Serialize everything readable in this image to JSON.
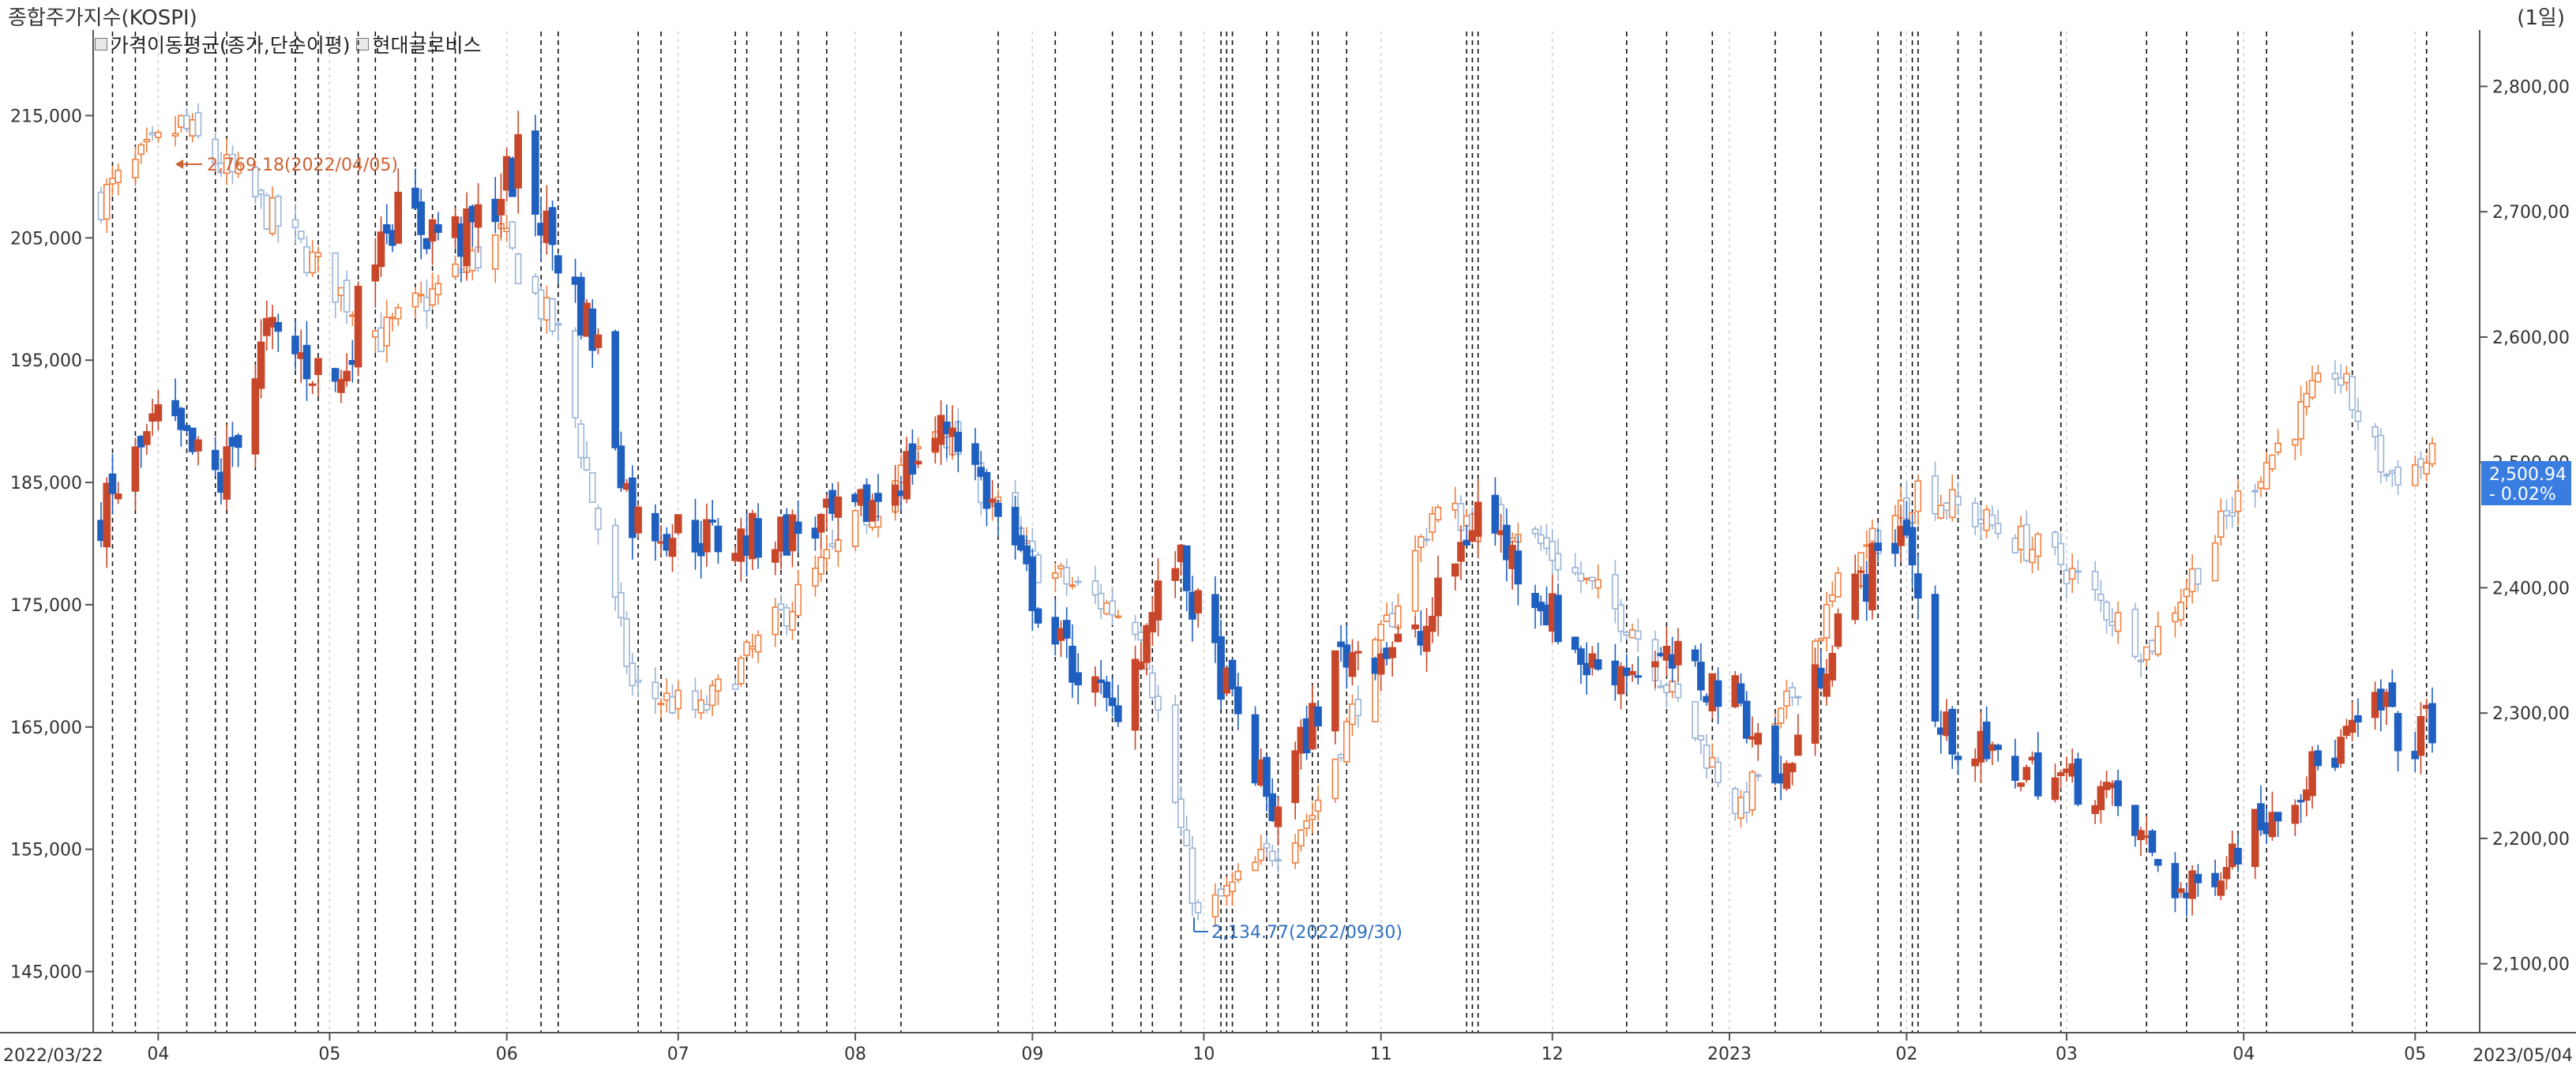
{
  "header": {
    "title": "종합주가지수(KOSPI)",
    "period": "(1일)"
  },
  "legend": [
    {
      "label": "가격이동평균(종가,단순이평)"
    },
    {
      "label": "현대글로비스"
    }
  ],
  "annotations": {
    "high": "2,769.18(2022/04/05)",
    "low": "2,134.77(2022/09/30)"
  },
  "current": {
    "value": "2,500.94",
    "change": "- 0.02%"
  },
  "colors": {
    "kospi_up": "#f08040",
    "kospi_down": "#9bb4d6",
    "stock_up": "#c8472a",
    "stock_down": "#1f5fbf",
    "badge": "#3a7de0"
  },
  "chart_data": {
    "type": "candlestick",
    "x_range": [
      "2022/03/22",
      "2023/05/04"
    ],
    "x_start_label": "2022/03/22",
    "x_end_label": "2023/05/04",
    "x_ticks": [
      {
        "label": "04",
        "date": "2022-04-01"
      },
      {
        "label": "05",
        "date": "2022-05-01"
      },
      {
        "label": "06",
        "date": "2022-06-01"
      },
      {
        "label": "07",
        "date": "2022-07-01"
      },
      {
        "label": "08",
        "date": "2022-08-01"
      },
      {
        "label": "09",
        "date": "2022-09-01"
      },
      {
        "label": "10",
        "date": "2022-10-01"
      },
      {
        "label": "11",
        "date": "2022-11-01"
      },
      {
        "label": "12",
        "date": "2022-12-01"
      },
      {
        "label": "2023",
        "date": "2023-01-01"
      },
      {
        "label": "02",
        "date": "2023-02-01"
      },
      {
        "label": "03",
        "date": "2023-03-01"
      },
      {
        "label": "04",
        "date": "2023-04-01"
      },
      {
        "label": "05",
        "date": "2023-05-01"
      }
    ],
    "left_axis": {
      "ylim": [
        140000,
        222000
      ],
      "ticks": [
        "145,000",
        "155,000",
        "165,000",
        "175,000",
        "185,000",
        "195,000",
        "205,000",
        "215,000"
      ],
      "tick_values": [
        145000,
        155000,
        165000,
        175000,
        185000,
        195000,
        205000,
        215000
      ]
    },
    "right_axis": {
      "ylim": [
        2045,
        2845
      ],
      "ticks": [
        "2,100,00",
        "2,200,00",
        "2,300,00",
        "2,400,00",
        "2,500,00",
        "2,600,00",
        "2,700,00",
        "2,800,00"
      ],
      "tick_values": [
        2100,
        2200,
        2300,
        2400,
        2500,
        2600,
        2700,
        2800
      ]
    },
    "series": [
      {
        "name": "종합주가지수(KOSPI)",
        "axis": "right",
        "key_points": [
          {
            "date": "2022-03-22",
            "value": 2710
          },
          {
            "date": "2022-04-05",
            "value": 2769
          },
          {
            "date": "2022-04-20",
            "value": 2700
          },
          {
            "date": "2022-05-10",
            "value": 2600
          },
          {
            "date": "2022-05-31",
            "value": 2680
          },
          {
            "date": "2022-06-10",
            "value": 2600
          },
          {
            "date": "2022-06-23",
            "value": 2320
          },
          {
            "date": "2022-07-05",
            "value": 2300
          },
          {
            "date": "2022-07-25",
            "value": 2410
          },
          {
            "date": "2022-08-16",
            "value": 2530
          },
          {
            "date": "2022-09-01",
            "value": 2420
          },
          {
            "date": "2022-09-20",
            "value": 2370
          },
          {
            "date": "2022-09-30",
            "value": 2135
          },
          {
            "date": "2022-10-20",
            "value": 2220
          },
          {
            "date": "2022-11-10",
            "value": 2460
          },
          {
            "date": "2022-11-25",
            "value": 2450
          },
          {
            "date": "2022-12-15",
            "value": 2370
          },
          {
            "date": "2023-01-03",
            "value": 2220
          },
          {
            "date": "2023-01-20",
            "value": 2400
          },
          {
            "date": "2023-02-03",
            "value": 2480
          },
          {
            "date": "2023-02-28",
            "value": 2420
          },
          {
            "date": "2023-03-15",
            "value": 2350
          },
          {
            "date": "2023-03-31",
            "value": 2470
          },
          {
            "date": "2023-04-17",
            "value": 2575
          },
          {
            "date": "2023-04-26",
            "value": 2490
          },
          {
            "date": "2023-05-04",
            "value": 2501
          }
        ]
      },
      {
        "name": "현대글로비스",
        "axis": "left",
        "key_points": [
          {
            "date": "2022-03-22",
            "value": 182000
          },
          {
            "date": "2022-04-01",
            "value": 190000
          },
          {
            "date": "2022-04-12",
            "value": 185000
          },
          {
            "date": "2022-04-20",
            "value": 197000
          },
          {
            "date": "2022-05-03",
            "value": 193000
          },
          {
            "date": "2022-05-10",
            "value": 207000
          },
          {
            "date": "2022-05-25",
            "value": 205000
          },
          {
            "date": "2022-06-03",
            "value": 211000
          },
          {
            "date": "2022-06-17",
            "value": 196000
          },
          {
            "date": "2022-06-23",
            "value": 182000
          },
          {
            "date": "2022-07-10",
            "value": 180000
          },
          {
            "date": "2022-08-01",
            "value": 182000
          },
          {
            "date": "2022-08-18",
            "value": 190000
          },
          {
            "date": "2022-09-05",
            "value": 172000
          },
          {
            "date": "2022-09-15",
            "value": 166000
          },
          {
            "date": "2022-09-26",
            "value": 179000
          },
          {
            "date": "2022-10-05",
            "value": 168000
          },
          {
            "date": "2022-10-13",
            "value": 158000
          },
          {
            "date": "2022-10-25",
            "value": 171000
          },
          {
            "date": "2022-11-08",
            "value": 172000
          },
          {
            "date": "2022-11-18",
            "value": 183000
          },
          {
            "date": "2022-12-07",
            "value": 170000
          },
          {
            "date": "2022-12-23",
            "value": 170000
          },
          {
            "date": "2023-01-03",
            "value": 167000
          },
          {
            "date": "2023-01-10",
            "value": 160000
          },
          {
            "date": "2023-01-20",
            "value": 174000
          },
          {
            "date": "2023-02-01",
            "value": 182000
          },
          {
            "date": "2023-02-06",
            "value": 165000
          },
          {
            "date": "2023-02-17",
            "value": 162000
          },
          {
            "date": "2023-03-07",
            "value": 160000
          },
          {
            "date": "2023-03-22",
            "value": 151000
          },
          {
            "date": "2023-04-05",
            "value": 158000
          },
          {
            "date": "2023-04-17",
            "value": 163000
          },
          {
            "date": "2023-04-26",
            "value": 167000
          },
          {
            "date": "2023-04-28",
            "value": 163000
          },
          {
            "date": "2023-05-04",
            "value": 165500
          }
        ]
      }
    ],
    "vertical_marker_dates": [
      "2022-03-24",
      "2022-03-28",
      "2022-04-06",
      "2022-04-11",
      "2022-04-13",
      "2022-04-18",
      "2022-04-25",
      "2022-04-29",
      "2022-05-06",
      "2022-05-09",
      "2022-05-16",
      "2022-05-19",
      "2022-05-23",
      "2022-06-07",
      "2022-06-10",
      "2022-06-24",
      "2022-06-28",
      "2022-07-11",
      "2022-07-13",
      "2022-07-19",
      "2022-07-22",
      "2022-07-27",
      "2022-08-09",
      "2022-08-26",
      "2022-09-05",
      "2022-09-15",
      "2022-09-20",
      "2022-09-22",
      "2022-09-27",
      "2022-10-04",
      "2022-10-05",
      "2022-10-06",
      "2022-10-12",
      "2022-10-14",
      "2022-10-20",
      "2022-10-21",
      "2022-10-26",
      "2022-11-16",
      "2022-11-17",
      "2022-11-18",
      "2022-12-14",
      "2022-12-21",
      "2022-12-29",
      "2023-01-09",
      "2023-01-17",
      "2023-01-27",
      "2023-01-31",
      "2023-02-02",
      "2023-02-03",
      "2023-02-10",
      "2023-02-14",
      "2023-02-28",
      "2023-03-15",
      "2023-03-22",
      "2023-03-31",
      "2023-04-05",
      "2023-04-20",
      "2023-05-03"
    ]
  }
}
